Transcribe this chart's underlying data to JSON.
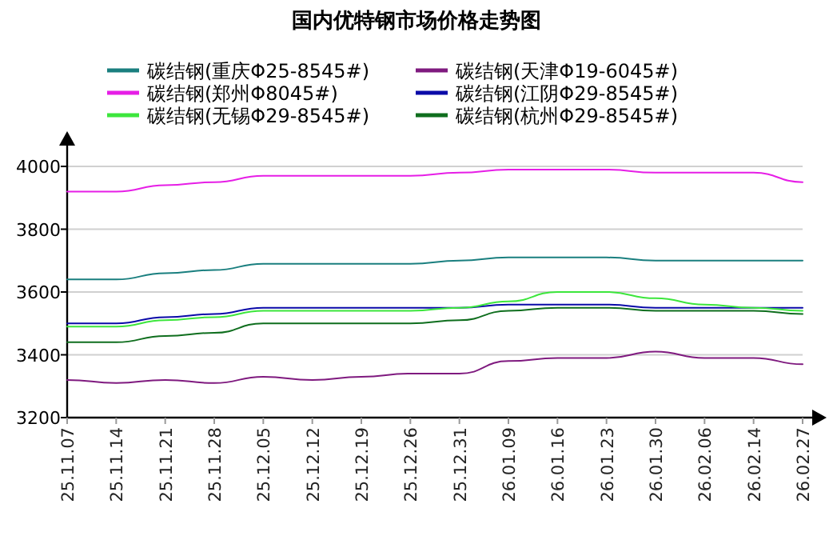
{
  "chart_data": {
    "type": "line",
    "title": "国内优特钢市场价格走势图",
    "categories": [
      "25.11.07",
      "25.11.14",
      "25.11.21",
      "25.11.28",
      "25.12.05",
      "25.12.12",
      "25.12.19",
      "25.12.26",
      "25.12.31",
      "26.01.09",
      "26.01.16",
      "26.01.23",
      "26.01.30",
      "26.02.06",
      "26.02.14",
      "26.02.27"
    ],
    "series": [
      {
        "name": "碳结钢(重庆Φ25-8545#)",
        "color": "#1a7f7f",
        "values": [
          3640,
          3640,
          3660,
          3670,
          3690,
          3690,
          3690,
          3690,
          3700,
          3710,
          3710,
          3710,
          3700,
          3700,
          3700,
          3700
        ]
      },
      {
        "name": "碳结钢(天津Φ19-6045#)",
        "color": "#7f1a7f",
        "values": [
          3320,
          3310,
          3320,
          3310,
          3330,
          3320,
          3330,
          3340,
          3340,
          3380,
          3390,
          3390,
          3410,
          3390,
          3390,
          3370
        ]
      },
      {
        "name": "碳结钢(郑州Φ8045#)",
        "color": "#e61ee6",
        "values": [
          3920,
          3920,
          3940,
          3950,
          3970,
          3970,
          3970,
          3970,
          3980,
          3990,
          3990,
          3990,
          3980,
          3980,
          3980,
          3950
        ]
      },
      {
        "name": "碳结钢(江阴Φ29-8545#)",
        "color": "#0a0aa8",
        "values": [
          3500,
          3500,
          3520,
          3530,
          3550,
          3550,
          3550,
          3550,
          3550,
          3560,
          3560,
          3560,
          3550,
          3550,
          3550,
          3550
        ]
      },
      {
        "name": "碳结钢(无锡Φ29-8545#)",
        "color": "#3ce63c",
        "values": [
          3490,
          3490,
          3510,
          3520,
          3540,
          3540,
          3540,
          3540,
          3550,
          3570,
          3600,
          3600,
          3580,
          3560,
          3550,
          3540
        ]
      },
      {
        "name": "碳结钢(杭州Φ29-8545#)",
        "color": "#0f6e1e",
        "values": [
          3440,
          3440,
          3460,
          3470,
          3500,
          3500,
          3500,
          3500,
          3510,
          3540,
          3550,
          3550,
          3540,
          3540,
          3540,
          3530
        ]
      }
    ],
    "ylim": [
      3200,
      4000
    ],
    "yticks": [
      3200,
      3400,
      3600,
      3800,
      4000
    ],
    "grid": "y",
    "legend": "top",
    "line_style": "solid",
    "marker": "none"
  }
}
